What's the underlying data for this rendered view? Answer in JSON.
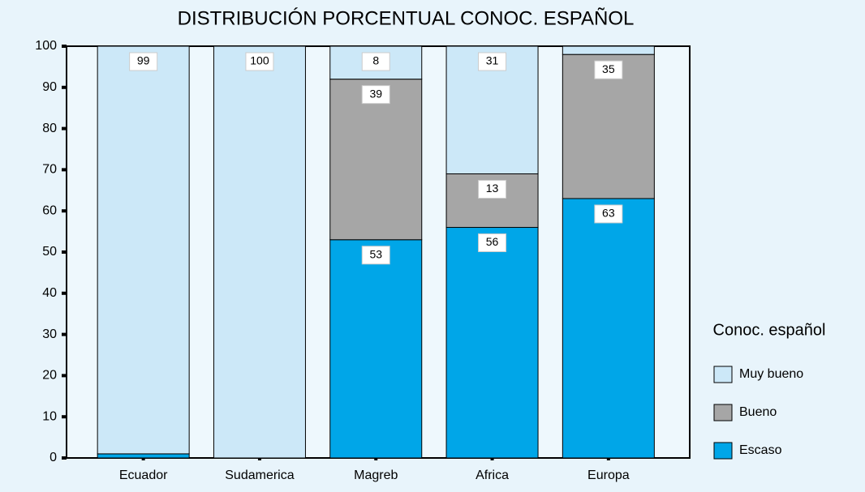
{
  "chart_data": {
    "type": "stacked_bar",
    "title": "DISTRIBUCIÓN PORCENTUAL CONOC. ESPAÑOL",
    "categories": [
      "Ecuador",
      "Sudamerica",
      "Magreb",
      "Africa",
      "Europa"
    ],
    "series": [
      {
        "name": "Escaso",
        "color": "#00a6e8",
        "values": [
          1,
          0,
          53,
          56,
          63
        ],
        "value_labels": [
          null,
          null,
          "53",
          "56",
          "63"
        ]
      },
      {
        "name": "Bueno",
        "color": "#a6a6a6",
        "values": [
          0,
          0,
          39,
          13,
          35
        ],
        "value_labels": [
          null,
          null,
          "39",
          "13",
          "35"
        ]
      },
      {
        "name": "Muy bueno",
        "color": "#cce8f8",
        "values": [
          99,
          100,
          8,
          31,
          2
        ],
        "value_labels": [
          "99",
          "100",
          "8",
          "31",
          null
        ]
      }
    ],
    "legend_title": "Conoc. español",
    "legend": "right",
    "ylim": [
      0,
      100
    ],
    "yticks": [
      0,
      10,
      20,
      30,
      40,
      50,
      60,
      70,
      80,
      90,
      100
    ]
  }
}
